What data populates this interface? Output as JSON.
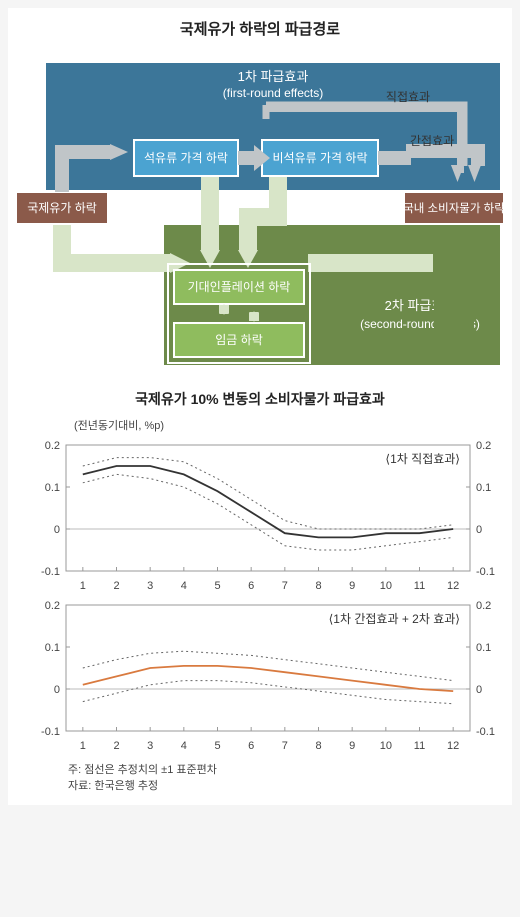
{
  "diagram": {
    "title": "국제유가 하락의 파급경로",
    "first_round_label": "1차 파급효과",
    "first_round_en": "(first-round effects)",
    "direct_effect_label": "직접효과",
    "indirect_effect_label": "간접효과",
    "petroleum_price_drop": "석유류 가격 하락",
    "non_petroleum_price_drop": "비석유류 가격 하락",
    "intl_oil_drop": "국제유가 하락",
    "domestic_cpi_drop": "국내 소비자물가 하락",
    "second_round_label": "2차 파급효과",
    "second_round_en": "(second-round effects)",
    "expected_inflation_drop": "기대인플레이션 하락",
    "wage_drop": "임금 하락",
    "colors": {
      "blue_bg": "#3c7699",
      "blue_box": "#4ba3d1",
      "brown_box": "#8b5a4a",
      "green_bg": "#6d8a4a",
      "green_box": "#8fbc5e",
      "pale_arrow": "#d8e5c8",
      "grey_arrow": "#c0c5c8",
      "white": "#ffffff",
      "text_dark": "#333333"
    }
  },
  "charts": {
    "title": "국제유가 10% 변동의 소비자물가 파급효과",
    "y_unit": "(전년동기대비, %p)",
    "chart1_label": "⟨1차 직접효과⟩",
    "chart2_label": "⟨1차 간접효과 + 2차 효과⟩",
    "x_categories": [
      "1",
      "2",
      "3",
      "4",
      "5",
      "6",
      "7",
      "8",
      "9",
      "10",
      "11",
      "12"
    ],
    "y_ticks": [
      "-0.1",
      "0",
      "0.1",
      "0.2"
    ],
    "ylim": [
      -0.1,
      0.2
    ],
    "chart1": {
      "line_color": "#333333",
      "band_color": "#666666",
      "main": [
        0.13,
        0.15,
        0.15,
        0.13,
        0.09,
        0.04,
        -0.01,
        -0.02,
        -0.02,
        -0.01,
        -0.01,
        0.0
      ],
      "upper": [
        0.15,
        0.17,
        0.17,
        0.16,
        0.12,
        0.07,
        0.02,
        0.0,
        0.0,
        0.0,
        0.0,
        0.01
      ],
      "lower": [
        0.11,
        0.13,
        0.12,
        0.1,
        0.06,
        0.01,
        -0.04,
        -0.05,
        -0.05,
        -0.04,
        -0.03,
        -0.02
      ]
    },
    "chart2": {
      "line_color": "#d97a3f",
      "band_color": "#666666",
      "main": [
        0.01,
        0.03,
        0.05,
        0.055,
        0.055,
        0.05,
        0.04,
        0.03,
        0.02,
        0.01,
        0.0,
        -0.005
      ],
      "upper": [
        0.05,
        0.07,
        0.085,
        0.09,
        0.085,
        0.08,
        0.07,
        0.06,
        0.05,
        0.04,
        0.03,
        0.02
      ],
      "lower": [
        -0.03,
        -0.01,
        0.01,
        0.02,
        0.02,
        0.015,
        0.005,
        -0.005,
        -0.015,
        -0.025,
        -0.03,
        -0.035
      ]
    },
    "note1": "주: 점선은 추정치의 ±1 표준편차",
    "note2": "자료: 한국은행 추정"
  }
}
